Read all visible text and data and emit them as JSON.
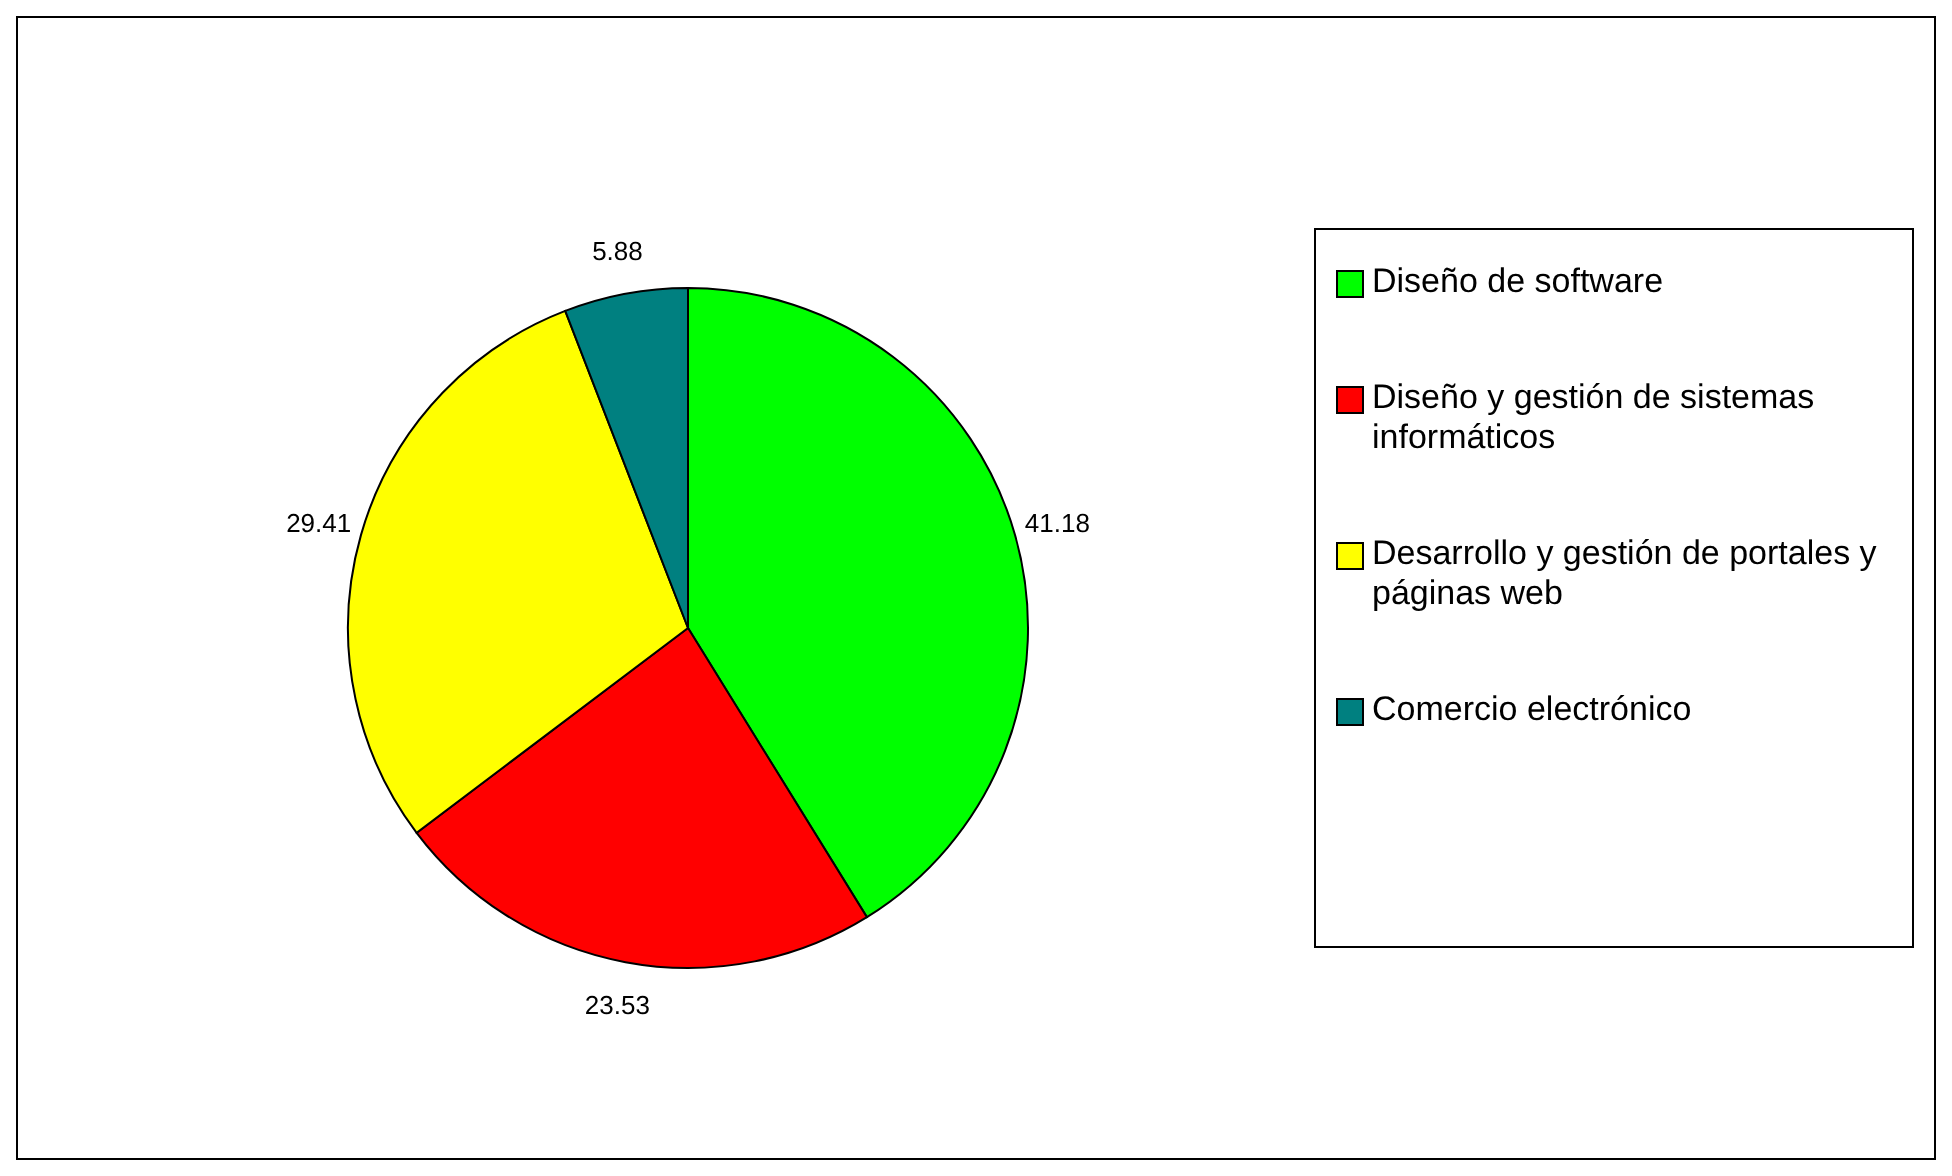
{
  "chart_data": {
    "type": "pie",
    "categories": [
      "Diseño de software",
      "Diseño y gestión de sistemas informáticos",
      "Desarrollo y gestión de portales y páginas web",
      "Comercio electrónico"
    ],
    "values": [
      41.18,
      23.53,
      29.41,
      5.88
    ],
    "colors": [
      "#00ff00",
      "#ff0000",
      "#ffff00",
      "#008080"
    ],
    "data_labels": true,
    "legend": "right"
  }
}
